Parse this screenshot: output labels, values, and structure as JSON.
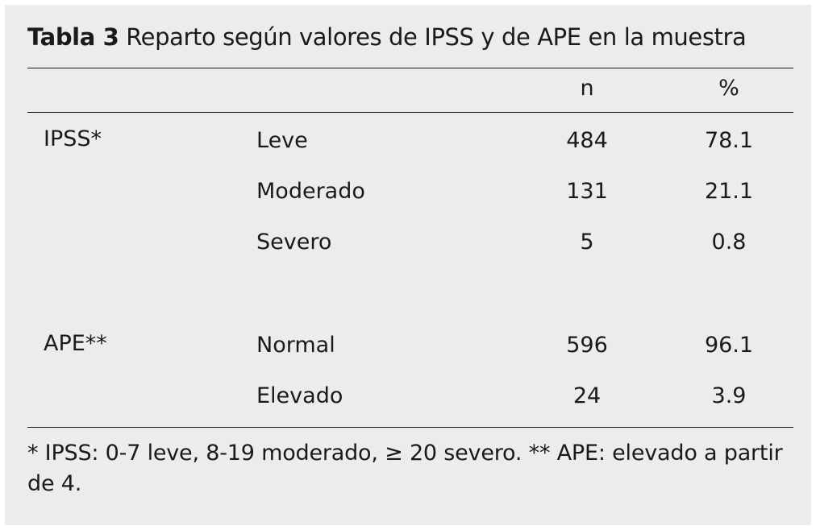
{
  "table": {
    "title_label": "Tabla 3",
    "title_text": "Reparto según valores de IPSS y de APE en la muestra",
    "headers": {
      "group": "",
      "category": "",
      "n": "n",
      "pct": "%"
    },
    "groups": [
      {
        "name": "IPSS*",
        "rows": [
          {
            "category": "Leve",
            "n": "484",
            "pct": "78.1"
          },
          {
            "category": "Moderado",
            "n": "131",
            "pct": "21.1"
          },
          {
            "category": "Severo",
            "n": "5",
            "pct": "0.8"
          }
        ]
      },
      {
        "name": "APE**",
        "rows": [
          {
            "category": "Normal",
            "n": "596",
            "pct": "96.1"
          },
          {
            "category": "Elevado",
            "n": "24",
            "pct": "3.9"
          }
        ]
      }
    ],
    "footnote": "* IPSS: 0-7 leve, 8-19 moderado, ≥ 20 severo. ** APE: elevado a partir de 4."
  }
}
